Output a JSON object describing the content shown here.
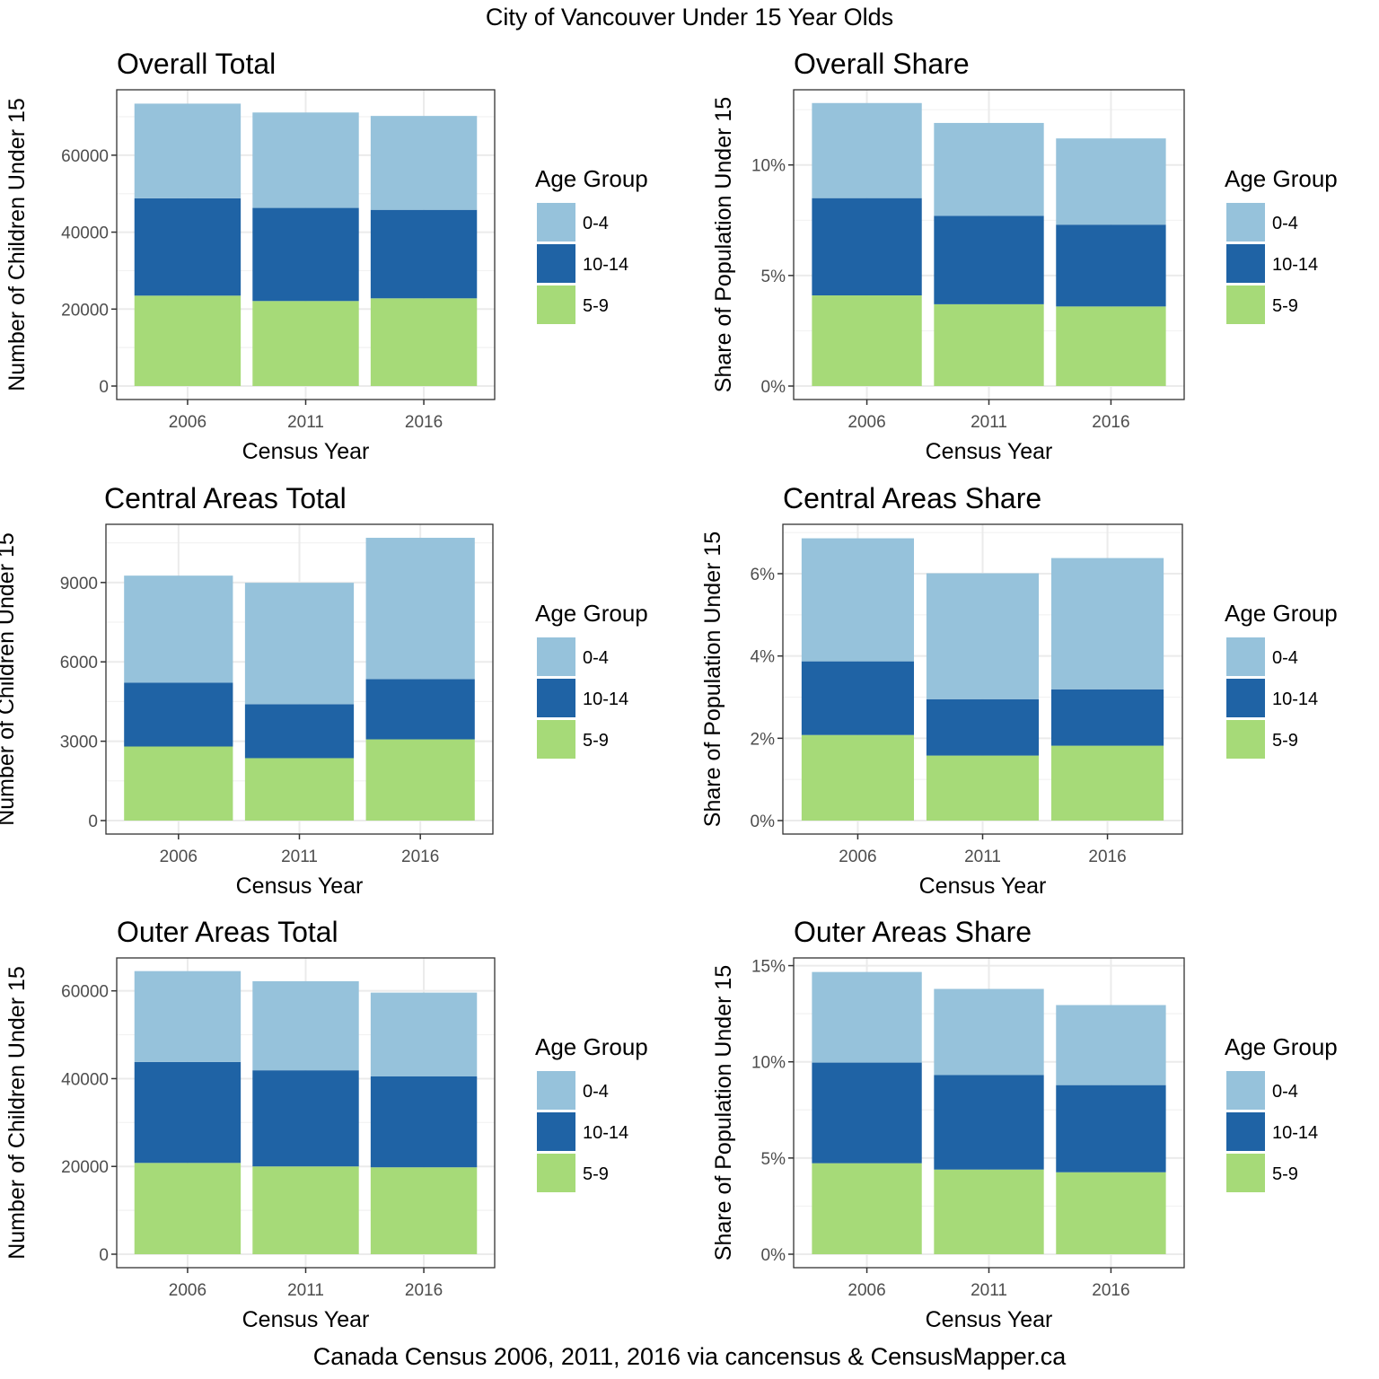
{
  "title": "City of Vancouver Under 15 Year Olds",
  "caption": "Canada Census 2006, 2011, 2016 via cancensus & CensusMapper.ca",
  "legend": {
    "title": "Age Group",
    "entries": [
      {
        "label": "0-4",
        "color": "#96c2db"
      },
      {
        "label": "10-14",
        "color": "#1f63a5"
      },
      {
        "label": "5-9",
        "color": "#a6da78"
      }
    ]
  },
  "colors": {
    "0-4": "#96c2db",
    "10-14": "#1f63a5",
    "5-9": "#a6da78",
    "grid": "#ebebeb",
    "panel_border": "#333333"
  },
  "chart_data": [
    {
      "type": "bar",
      "stacked": true,
      "title": "Overall Total",
      "xlabel": "Census Year",
      "ylabel": "Number of Children Under 15",
      "categories": [
        "2006",
        "2011",
        "2016"
      ],
      "series": [
        {
          "name": "5-9",
          "values": [
            23500,
            22100,
            22800
          ]
        },
        {
          "name": "10-14",
          "values": [
            25300,
            24200,
            23000
          ]
        },
        {
          "name": "0-4",
          "values": [
            24600,
            24800,
            24400
          ]
        }
      ],
      "yticks": [
        0,
        20000,
        40000,
        60000
      ],
      "ytick_labels": [
        "0",
        "20000",
        "40000",
        "60000"
      ],
      "ylim": [
        0,
        77000
      ],
      "legend_position": "right",
      "grid": true
    },
    {
      "type": "bar",
      "stacked": true,
      "title": "Overall Share",
      "xlabel": "Census Year",
      "ylabel": "Share of Population Under 15",
      "categories": [
        "2006",
        "2011",
        "2016"
      ],
      "series": [
        {
          "name": "5-9",
          "values": [
            4.1,
            3.7,
            3.6
          ]
        },
        {
          "name": "10-14",
          "values": [
            4.4,
            4.0,
            3.7
          ]
        },
        {
          "name": "0-4",
          "values": [
            4.3,
            4.2,
            3.9
          ]
        }
      ],
      "unit": "%",
      "yticks": [
        0,
        5,
        10
      ],
      "ytick_labels": [
        "0%",
        "5%",
        "10%"
      ],
      "ylim": [
        0,
        13.4
      ],
      "legend_position": "right",
      "grid": true
    },
    {
      "type": "bar",
      "stacked": true,
      "title": "Central Areas Total",
      "xlabel": "Census Year",
      "ylabel": "Number of Children Under 15",
      "categories": [
        "2006",
        "2011",
        "2016"
      ],
      "series": [
        {
          "name": "5-9",
          "values": [
            2800,
            2360,
            3070
          ]
        },
        {
          "name": "10-14",
          "values": [
            2410,
            2040,
            2280
          ]
        },
        {
          "name": "0-4",
          "values": [
            4050,
            4590,
            5340
          ]
        }
      ],
      "yticks": [
        0,
        3000,
        6000,
        9000
      ],
      "ytick_labels": [
        "0",
        "3000",
        "6000",
        "9000"
      ],
      "ylim": [
        0,
        11200
      ],
      "legend_position": "right",
      "grid": true
    },
    {
      "type": "bar",
      "stacked": true,
      "title": "Central Areas Share",
      "xlabel": "Census Year",
      "ylabel": "Share of Population Under 15",
      "categories": [
        "2006",
        "2011",
        "2016"
      ],
      "series": [
        {
          "name": "5-9",
          "values": [
            2.08,
            1.58,
            1.82
          ]
        },
        {
          "name": "10-14",
          "values": [
            1.79,
            1.37,
            1.37
          ]
        },
        {
          "name": "0-4",
          "values": [
            2.99,
            3.06,
            3.19
          ]
        }
      ],
      "unit": "%",
      "yticks": [
        0,
        2,
        4,
        6
      ],
      "ytick_labels": [
        "0%",
        "2%",
        "4%",
        "6%"
      ],
      "ylim": [
        0,
        7.2
      ],
      "legend_position": "right",
      "grid": true
    },
    {
      "type": "bar",
      "stacked": true,
      "title": "Outer Areas Total",
      "xlabel": "Census Year",
      "ylabel": "Number of Children Under 15",
      "categories": [
        "2006",
        "2011",
        "2016"
      ],
      "series": [
        {
          "name": "5-9",
          "values": [
            20800,
            20000,
            19800
          ]
        },
        {
          "name": "10-14",
          "values": [
            23000,
            21900,
            20700
          ]
        },
        {
          "name": "0-4",
          "values": [
            20700,
            20300,
            19100
          ]
        }
      ],
      "yticks": [
        0,
        20000,
        40000,
        60000
      ],
      "ytick_labels": [
        "0",
        "20000",
        "40000",
        "60000"
      ],
      "ylim": [
        0,
        67500
      ],
      "legend_position": "right",
      "grid": true
    },
    {
      "type": "bar",
      "stacked": true,
      "title": "Outer Areas Share",
      "xlabel": "Census Year",
      "ylabel": "Share of Population Under 15",
      "categories": [
        "2006",
        "2011",
        "2016"
      ],
      "series": [
        {
          "name": "5-9",
          "values": [
            4.73,
            4.4,
            4.26
          ]
        },
        {
          "name": "10-14",
          "values": [
            5.23,
            4.91,
            4.53
          ]
        },
        {
          "name": "0-4",
          "values": [
            4.71,
            4.48,
            4.16
          ]
        }
      ],
      "unit": "%",
      "yticks": [
        0,
        5,
        10,
        15
      ],
      "ytick_labels": [
        "0%",
        "5%",
        "10%",
        "15%"
      ],
      "ylim": [
        0,
        15.4
      ],
      "legend_position": "right",
      "grid": true
    }
  ]
}
